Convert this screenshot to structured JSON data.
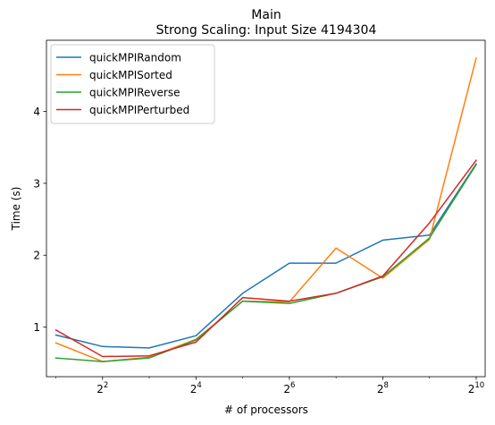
{
  "chart_data": {
    "type": "line",
    "title": "Main",
    "subtitle": "Strong Scaling: Input Size 4194304",
    "xlabel": "# of processors",
    "ylabel": "Time (s)",
    "x_scale": "log2",
    "x": [
      2,
      4,
      8,
      16,
      32,
      64,
      128,
      256,
      512,
      1024
    ],
    "xlim": [
      1.74,
      1170
    ],
    "ylim": [
      0.31,
      4.99
    ],
    "x_ticks": [
      {
        "value": 4,
        "base": "2",
        "exp": "2"
      },
      {
        "value": 16,
        "base": "2",
        "exp": "4"
      },
      {
        "value": 64,
        "base": "2",
        "exp": "6"
      },
      {
        "value": 256,
        "base": "2",
        "exp": "8"
      },
      {
        "value": 1024,
        "base": "2",
        "exp": "10"
      }
    ],
    "y_ticks": [
      1,
      2,
      3,
      4
    ],
    "y_tick_labels": [
      "1",
      "2",
      "3",
      "4"
    ],
    "grid": false,
    "legend_position": "upper-left",
    "series": [
      {
        "name": "quickMPIRandom",
        "color": "#1f77b4",
        "values": [
          0.89,
          0.73,
          0.71,
          0.88,
          1.47,
          1.89,
          1.89,
          2.21,
          2.28,
          3.27
        ]
      },
      {
        "name": "quickMPISorted",
        "color": "#ff7f0e",
        "values": [
          0.78,
          0.52,
          0.58,
          0.83,
          1.36,
          1.35,
          2.1,
          1.68,
          2.22,
          4.74
        ]
      },
      {
        "name": "quickMPIReverse",
        "color": "#2ca02c",
        "values": [
          0.57,
          0.52,
          0.57,
          0.82,
          1.36,
          1.33,
          1.47,
          1.7,
          2.24,
          3.26
        ]
      },
      {
        "name": "quickMPIPerturbed",
        "color": "#d62728",
        "values": [
          0.96,
          0.59,
          0.6,
          0.79,
          1.41,
          1.36,
          1.47,
          1.71,
          2.45,
          3.32
        ]
      }
    ]
  }
}
